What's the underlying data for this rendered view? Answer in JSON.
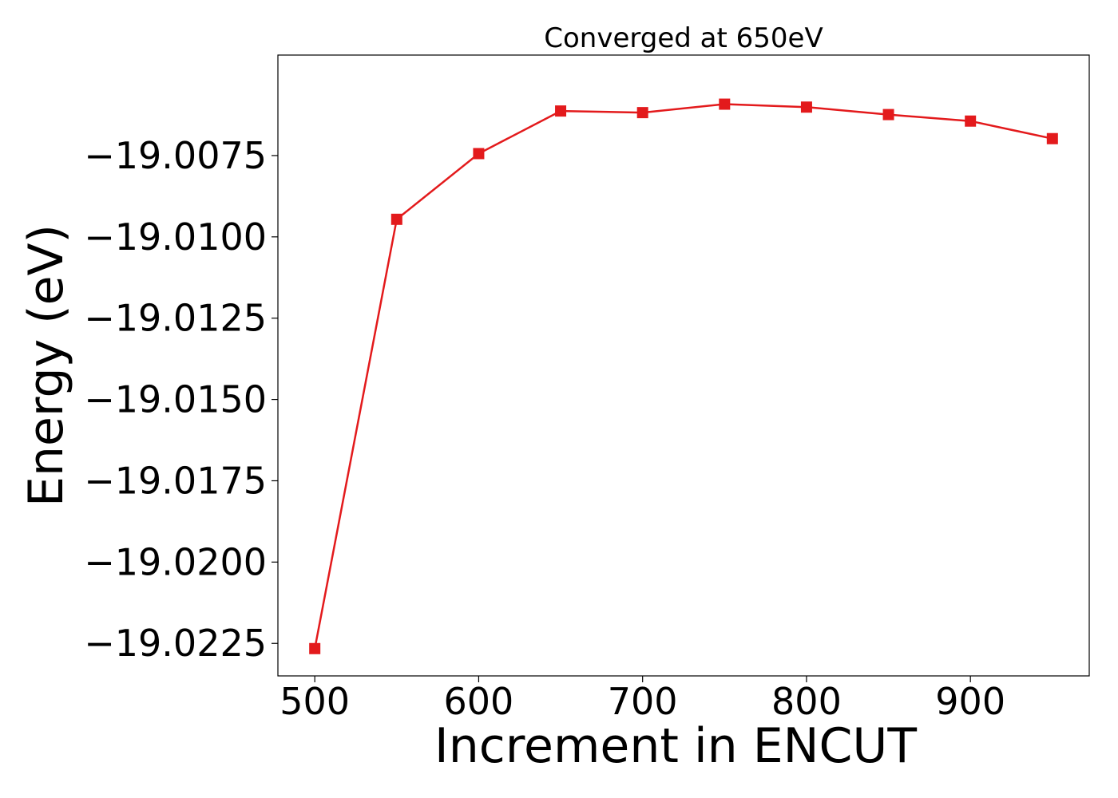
{
  "chart_data": {
    "type": "line",
    "title": "Converged at 650eV",
    "xlabel": "Increment in ENCUT",
    "ylabel": "Energy (eV)",
    "x": [
      500,
      550,
      600,
      650,
      700,
      750,
      800,
      850,
      900,
      950
    ],
    "series": [
      {
        "values": [
          -19.02266,
          -19.00946,
          -19.00744,
          -19.00613,
          -19.00618,
          -19.00592,
          -19.00601,
          -19.00624,
          -19.00644,
          -19.00698
        ],
        "color": "#e31a1c",
        "marker": "square"
      }
    ],
    "xticks": [
      500,
      600,
      700,
      800,
      900
    ],
    "xtick_labels": [
      "500",
      "600",
      "700",
      "800",
      "900"
    ],
    "yticks": [
      -19.0225,
      -19.02,
      -19.0175,
      -19.015,
      -19.0125,
      -19.01,
      -19.0075
    ],
    "ytick_labels": [
      "−19.0225",
      "−19.0200",
      "−19.0175",
      "−19.0150",
      "−19.0125",
      "−19.0100",
      "−19.0075"
    ],
    "xlim": [
      477.5,
      972.5
    ],
    "ylim": [
      -19.0235,
      -19.00441
    ],
    "grid": false,
    "legend": "none"
  }
}
